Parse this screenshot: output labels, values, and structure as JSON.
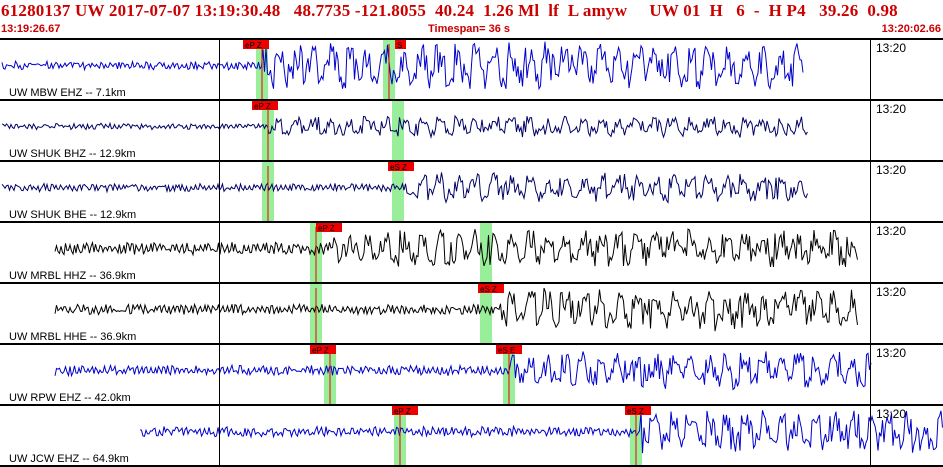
{
  "header": {
    "event_line": "61280137 UW 2017-07-07 13:19:30.48   48.7735 -121.8055  40.24  1.26 Ml  lf  L amyw     UW 01  H   6  -  H P4   39.26  0.98",
    "start_time": "13:19:26.67",
    "timespan": "Timespan=  36 s",
    "end_time": "13:20:02.66"
  },
  "colors": {
    "header_text": "#cc0000",
    "pick_flag": "#ee0000",
    "pick_window": "#99ee99",
    "trace_blue": "#0000cc",
    "trace_navy": "#000066",
    "trace_black": "#000000"
  },
  "panels": [
    {
      "station": "UW MBW EHZ -- 7.1km",
      "time_label": "13:20",
      "color": "#0000cc",
      "picks": [
        {
          "label": "eP Z",
          "x": 243,
          "green": 262
        },
        {
          "label": "S",
          "x": 395,
          "green": 389
        }
      ],
      "trace_start": 2,
      "trace_end": 803,
      "onset": 262,
      "amp_pre": 4,
      "amp_post": 22
    },
    {
      "station": "UW SHUK BHZ -- 12.9km",
      "time_label": "13:20",
      "color": "#000066",
      "picks": [
        {
          "label": "eP Z",
          "x": 252,
          "green": 268
        },
        {
          "label": "",
          "x": 0,
          "green": 398
        }
      ],
      "trace_start": 2,
      "trace_end": 808,
      "onset": 268,
      "amp_pre": 3,
      "amp_post": 10
    },
    {
      "station": "UW SHUK BHE -- 12.9km",
      "time_label": "13:20",
      "color": "#000066",
      "picks": [
        {
          "label": "eS Z",
          "x": 388,
          "green": 268
        },
        {
          "label": "",
          "x": 0,
          "green": 398
        }
      ],
      "trace_start": 2,
      "trace_end": 808,
      "onset": 405,
      "amp_pre": 4,
      "amp_post": 14
    },
    {
      "station": "UW MRBL HHZ -- 36.9km",
      "time_label": "13:20",
      "color": "#000000",
      "picks": [
        {
          "label": "eP Z",
          "x": 316,
          "green": 316
        },
        {
          "label": "",
          "x": 0,
          "green": 486
        }
      ],
      "trace_start": 55,
      "trace_end": 858,
      "onset": 330,
      "amp_pre": 6,
      "amp_post": 18
    },
    {
      "station": "UW MRBL HHE -- 36.9km",
      "time_label": "13:20",
      "color": "#000000",
      "picks": [
        {
          "label": "eS Z",
          "x": 478,
          "green": 316
        },
        {
          "label": "",
          "x": 0,
          "green": 486
        }
      ],
      "trace_start": 55,
      "trace_end": 858,
      "onset": 500,
      "amp_pre": 5,
      "amp_post": 20
    },
    {
      "station": "UW RPW EHZ -- 42.0km",
      "time_label": "13:20",
      "color": "#0000cc",
      "picks": [
        {
          "label": "eP Z",
          "x": 310,
          "green": 330
        },
        {
          "label": "eS E",
          "x": 496,
          "green": 509
        }
      ],
      "trace_start": 55,
      "trace_end": 872,
      "onset": 509,
      "amp_pre": 5,
      "amp_post": 18
    },
    {
      "station": "UW JCW EHZ -- 64.9km",
      "time_label": "13:20",
      "color": "#0000cc",
      "picks": [
        {
          "label": "eP Z",
          "x": 392,
          "green": 400
        },
        {
          "label": "eS Z",
          "x": 625,
          "green": 636
        }
      ],
      "trace_start": 140,
      "trace_end": 943,
      "onset": 640,
      "amp_pre": 5,
      "amp_post": 20
    }
  ]
}
